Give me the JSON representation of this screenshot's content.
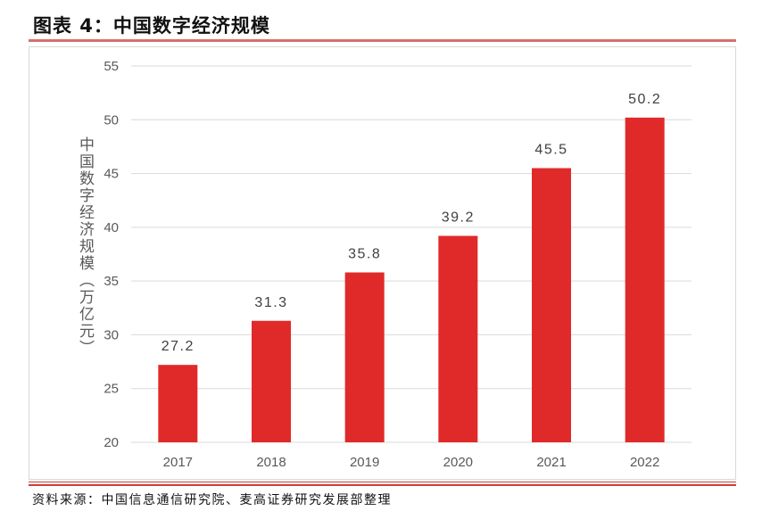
{
  "header": {
    "title": "图表 4：中国数字经济规模"
  },
  "colors": {
    "title_rule": "#d4706c",
    "bottom_rule": "#c8403c"
  },
  "chart_data": {
    "type": "bar",
    "categories": [
      "2017",
      "2018",
      "2019",
      "2020",
      "2021",
      "2022"
    ],
    "values": [
      27.2,
      31.3,
      35.8,
      39.2,
      45.5,
      50.2
    ],
    "ylabel": "中国数字经济规模（万亿元）",
    "xlabel": "",
    "ylim": [
      20,
      55
    ],
    "yticks": [
      20,
      25,
      30,
      35,
      40,
      45,
      50,
      55
    ],
    "grid": true,
    "data_labels": true,
    "bar_color": "#e02a29",
    "grid_color": "#d9d9d9"
  },
  "footer": {
    "source": "资料来源：中国信息通信研究院、麦高证券研究发展部整理"
  }
}
